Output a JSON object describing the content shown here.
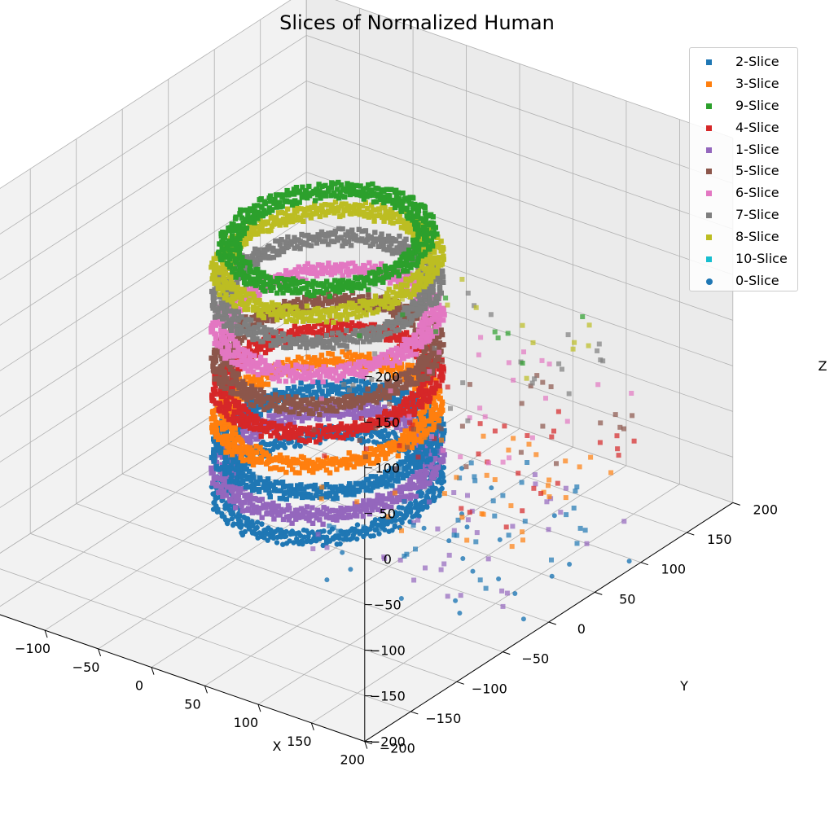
{
  "chart_data": {
    "type": "scatter",
    "projection": "3d",
    "title": "Slices of Normalized Human",
    "xlabel": "X",
    "ylabel": "Y",
    "zlabel": "Z",
    "xlim": [
      -200,
      200
    ],
    "ylim": [
      -200,
      200
    ],
    "zlim": [
      -200,
      200
    ],
    "xticks": [
      -200,
      -150,
      -100,
      -50,
      0,
      50,
      100,
      150,
      200
    ],
    "yticks": [
      -200,
      -150,
      -100,
      -50,
      0,
      50,
      100,
      150,
      200
    ],
    "zticks": [
      -200,
      -150,
      -100,
      -50,
      0,
      50,
      100,
      150,
      200
    ],
    "xtick_labels": [
      "−200",
      "−150",
      "−100",
      "−50",
      "0",
      "50",
      "100",
      "150",
      "200"
    ],
    "ytick_labels": [
      "−200",
      "−150",
      "−100",
      "−50",
      "0",
      "50",
      "100",
      "150",
      "200"
    ],
    "ztick_labels": [
      "−200",
      "−150",
      "−100",
      "−50",
      "0",
      "50",
      "100",
      "150",
      "200"
    ],
    "grid": true,
    "legend_position": "top-right",
    "series": [
      {
        "name": "2-Slice",
        "color": "#1f77b4",
        "marker": "square",
        "z": -140,
        "radius": 75,
        "trail": 0.9
      },
      {
        "name": "3-Slice",
        "color": "#ff7f0e",
        "marker": "square",
        "z": -110,
        "radius": 75,
        "trail": 0.8
      },
      {
        "name": "9-Slice",
        "color": "#2ca02c",
        "marker": "square",
        "z": 80,
        "radius": 70,
        "trail": 0.2
      },
      {
        "name": "4-Slice",
        "color": "#d62728",
        "marker": "square",
        "z": -75,
        "radius": 75,
        "trail": 0.75
      },
      {
        "name": "1-Slice",
        "color": "#9467bd",
        "marker": "square",
        "z": -165,
        "radius": 75,
        "trail": 0.9
      },
      {
        "name": "5-Slice",
        "color": "#8c564b",
        "marker": "square",
        "z": -45,
        "radius": 75,
        "trail": 0.65
      },
      {
        "name": "6-Slice",
        "color": "#e377c2",
        "marker": "square",
        "z": -10,
        "radius": 75,
        "trail": 0.7
      },
      {
        "name": "7-Slice",
        "color": "#7f7f7f",
        "marker": "square",
        "z": 25,
        "radius": 75,
        "trail": 0.55
      },
      {
        "name": "8-Slice",
        "color": "#bcbd22",
        "marker": "square",
        "z": 55,
        "radius": 75,
        "trail": 0.3
      },
      {
        "name": "10-Slice",
        "color": "#17becf",
        "marker": "square",
        "z": 100,
        "radius": 0,
        "trail": 0
      },
      {
        "name": "0-Slice",
        "color": "#1f77b4",
        "marker": "circle",
        "z": -190,
        "radius": 75,
        "trail": 0.5
      }
    ]
  }
}
